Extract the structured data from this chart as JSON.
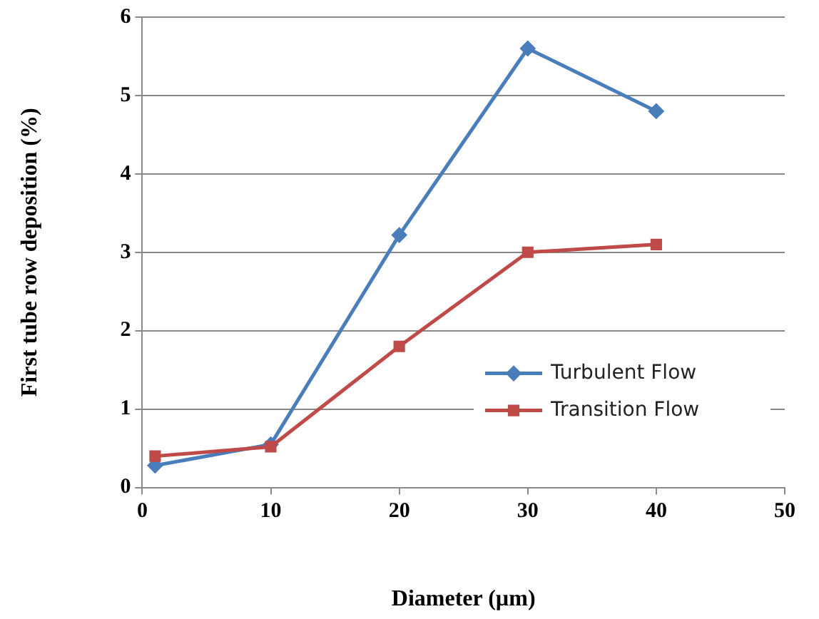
{
  "chart_data": {
    "type": "line",
    "xlabel": "Diameter (µm)",
    "ylabel": "First tube row deposition (%)",
    "xlim": [
      0,
      50
    ],
    "xticks": [
      0,
      10,
      20,
      30,
      40,
      50
    ],
    "ylim": [
      0,
      6
    ],
    "yticks": [
      0,
      1,
      2,
      3,
      4,
      5,
      6
    ],
    "grid": "y",
    "legend": "bottom right",
    "line_style": "solid",
    "series": [
      {
        "name": "Turbulent Flow",
        "color": "#4a7ebb",
        "marker": "diamond",
        "x": [
          1,
          10,
          20,
          30,
          40
        ],
        "values": [
          0.28,
          0.55,
          3.22,
          5.6,
          4.8
        ]
      },
      {
        "name": "Transition Flow",
        "color": "#be4b48",
        "marker": "square",
        "x": [
          1,
          10,
          20,
          30,
          40
        ],
        "values": [
          0.4,
          0.52,
          1.8,
          3.0,
          3.1
        ]
      }
    ]
  }
}
